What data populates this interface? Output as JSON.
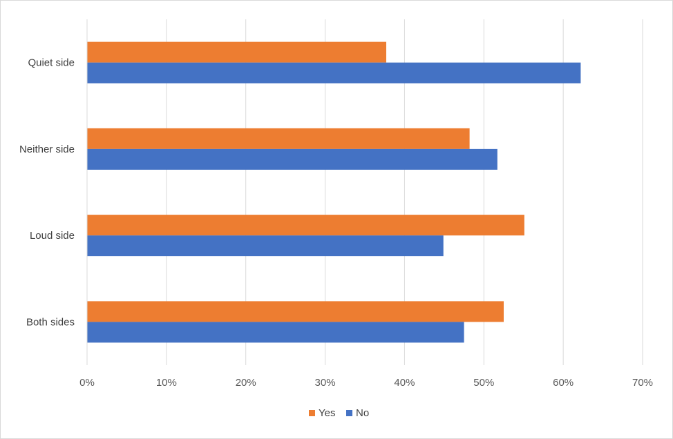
{
  "chart_data": {
    "type": "bar",
    "orientation": "horizontal",
    "categories": [
      "Quiet side",
      "Neither side",
      "Loud side",
      "Both sides"
    ],
    "series": [
      {
        "name": "Yes",
        "color": "#ED7D31",
        "values": [
          0.377,
          0.482,
          0.551,
          0.525
        ]
      },
      {
        "name": "No",
        "color": "#4472C4",
        "values": [
          0.622,
          0.517,
          0.449,
          0.475
        ]
      }
    ],
    "xlim": [
      0,
      0.7
    ],
    "xticks": [
      0,
      0.1,
      0.2,
      0.3,
      0.4,
      0.5,
      0.6,
      0.7
    ],
    "xtick_labels": [
      "0%",
      "10%",
      "20%",
      "30%",
      "40%",
      "50%",
      "60%",
      "70%"
    ],
    "grid": true,
    "legend_position": "bottom",
    "title": "",
    "xlabel": "",
    "ylabel": ""
  }
}
